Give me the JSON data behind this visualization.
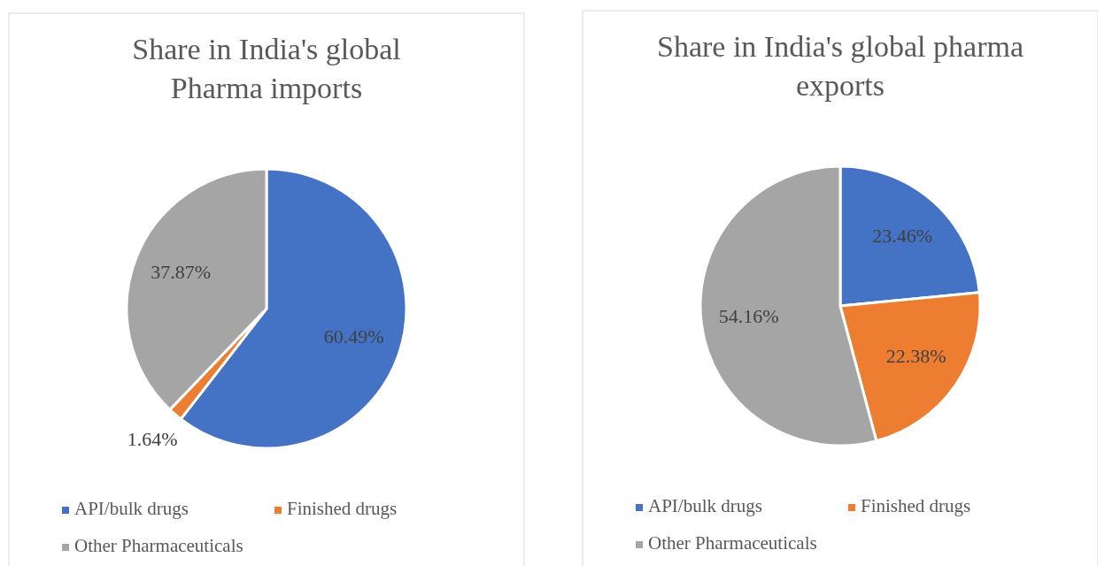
{
  "chart_data": [
    {
      "type": "pie",
      "title": "Share in India's global\nPharma imports",
      "categories": [
        "API/bulk drugs",
        "Finished drugs",
        "Other Pharmaceuticals"
      ],
      "values": [
        60.49,
        1.64,
        37.87
      ],
      "colors": [
        "#4472c4",
        "#ed7d31",
        "#a5a5a5"
      ],
      "value_labels": [
        "60.49%",
        "1.64%",
        "37.87%"
      ],
      "legend": "bottom"
    },
    {
      "type": "pie",
      "title": "Share in India's global pharma\nexports",
      "categories": [
        "API/bulk drugs",
        "Finished drugs",
        "Other Pharmaceuticals"
      ],
      "values": [
        23.46,
        22.38,
        54.16
      ],
      "colors": [
        "#4472c4",
        "#ed7d31",
        "#a5a5a5"
      ],
      "value_labels": [
        "23.46%",
        "22.38%",
        "54.16%"
      ],
      "legend": "bottom"
    }
  ]
}
